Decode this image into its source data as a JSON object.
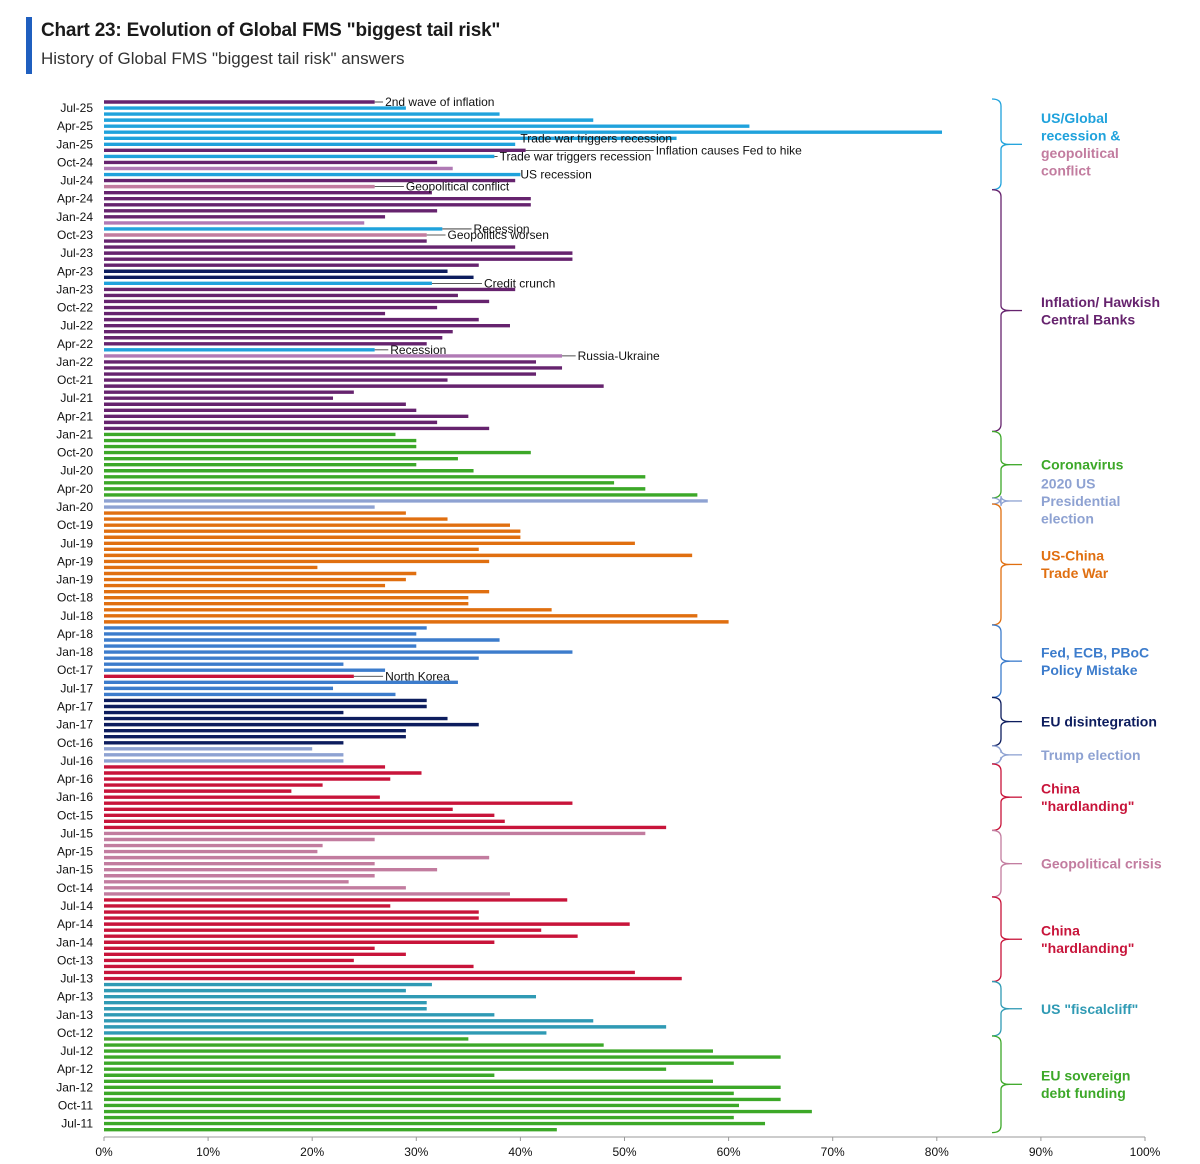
{
  "header": {
    "title": "Chart 23: Evolution of Global FMS \"biggest tail risk\"",
    "subtitle": "History of Global FMS \"biggest tail risk\" answers",
    "accent_color": "#1f5fbf"
  },
  "colors": {
    "A": "#1fa2dc",
    "I": "#66236e",
    "C": "#3ca828",
    "E": "#8ea2d2",
    "T": "#e06f10",
    "F": "#3c7ccc",
    "N": "#0d1d5e",
    "U": "#8ea2d2",
    "H": "#c8143a",
    "G": "#c27c9f",
    "S": "#2f9ab4",
    "K": "#b07ab5"
  },
  "chart_data": {
    "type": "bar",
    "orientation": "horizontal",
    "title": "Chart 23: Evolution of Global FMS \"biggest tail risk\"",
    "subtitle": "History of Global FMS \"biggest tail risk\" answers",
    "xlim": [
      0,
      100
    ],
    "x_unit": "%",
    "x_ticks": [
      "0%",
      "10%",
      "20%",
      "30%",
      "40%",
      "50%",
      "60%",
      "70%",
      "80%",
      "90%",
      "100%"
    ],
    "y_tick_labels": [
      "Jul-25",
      "Apr-25",
      "Jan-25",
      "Oct-24",
      "Jul-24",
      "Apr-24",
      "Jan-24",
      "Oct-23",
      "Jul-23",
      "Apr-23",
      "Jan-23",
      "Oct-22",
      "Jul-22",
      "Apr-22",
      "Jan-22",
      "Oct-21",
      "Jul-21",
      "Apr-21",
      "Jan-21",
      "Oct-20",
      "Jul-20",
      "Apr-20",
      "Jan-20",
      "Oct-19",
      "Jul-19",
      "Apr-19",
      "Jan-19",
      "Oct-18",
      "Jul-18",
      "Apr-18",
      "Jan-18",
      "Oct-17",
      "Jul-17",
      "Apr-17",
      "Jan-17",
      "Oct-16",
      "Jul-16",
      "Apr-16",
      "Jan-16",
      "Oct-15",
      "Jul-15",
      "Apr-15",
      "Jan-15",
      "Oct-14",
      "Jul-14",
      "Apr-14",
      "Jan-14",
      "Oct-13",
      "Jul-13",
      "Apr-13",
      "Jan-13",
      "Oct-12",
      "Jul-12",
      "Apr-12",
      "Jan-12",
      "Oct-11",
      "Jul-11"
    ],
    "bars": [
      {
        "month": "Aug-25",
        "value": 26,
        "cat": "I"
      },
      {
        "month": "Jul-25",
        "value": 29,
        "cat": "A"
      },
      {
        "month": "Jun-25",
        "value": 38,
        "cat": "A"
      },
      {
        "month": "May-25",
        "value": 47,
        "cat": "A"
      },
      {
        "month": "Apr-25",
        "value": 62,
        "cat": "A"
      },
      {
        "month": "Mar-25",
        "value": 80.5,
        "cat": "A"
      },
      {
        "month": "Feb-25",
        "value": 55,
        "cat": "A"
      },
      {
        "month": "Jan-25",
        "value": 39.5,
        "cat": "A"
      },
      {
        "month": "Dec-24",
        "value": 40.5,
        "cat": "I"
      },
      {
        "month": "Nov-24",
        "value": 37.5,
        "cat": "A"
      },
      {
        "month": "Oct-24",
        "value": 32,
        "cat": "I"
      },
      {
        "month": "Sep-24",
        "value": 33.5,
        "cat": "K"
      },
      {
        "month": "Aug-24",
        "value": 40,
        "cat": "A"
      },
      {
        "month": "Jul-24",
        "value": 39.5,
        "cat": "I"
      },
      {
        "month": "Jun-24",
        "value": 26,
        "cat": "G"
      },
      {
        "month": "May-24",
        "value": 31.5,
        "cat": "I"
      },
      {
        "month": "Apr-24",
        "value": 41,
        "cat": "I"
      },
      {
        "month": "Mar-24",
        "value": 41,
        "cat": "I"
      },
      {
        "month": "Feb-24",
        "value": 32,
        "cat": "I"
      },
      {
        "month": "Jan-24",
        "value": 27,
        "cat": "I"
      },
      {
        "month": "Dec-23",
        "value": 25,
        "cat": "K"
      },
      {
        "month": "Nov-23",
        "value": 32.5,
        "cat": "A"
      },
      {
        "month": "Oct-23",
        "value": 31,
        "cat": "G"
      },
      {
        "month": "Sep-23",
        "value": 31,
        "cat": "I"
      },
      {
        "month": "Aug-23",
        "value": 39.5,
        "cat": "I"
      },
      {
        "month": "Jul-23",
        "value": 45,
        "cat": "I"
      },
      {
        "month": "Jun-23",
        "value": 45,
        "cat": "I"
      },
      {
        "month": "May-23",
        "value": 36,
        "cat": "I"
      },
      {
        "month": "Apr-23",
        "value": 33,
        "cat": "N"
      },
      {
        "month": "Mar-23",
        "value": 35.5,
        "cat": "N"
      },
      {
        "month": "Feb-23",
        "value": 31.5,
        "cat": "A"
      },
      {
        "month": "Jan-23",
        "value": 39.5,
        "cat": "I"
      },
      {
        "month": "Dec-22",
        "value": 34,
        "cat": "I"
      },
      {
        "month": "Nov-22",
        "value": 37,
        "cat": "I"
      },
      {
        "month": "Oct-22",
        "value": 32,
        "cat": "I"
      },
      {
        "month": "Sep-22",
        "value": 27,
        "cat": "I"
      },
      {
        "month": "Aug-22",
        "value": 36,
        "cat": "I"
      },
      {
        "month": "Jul-22",
        "value": 39,
        "cat": "I"
      },
      {
        "month": "Jun-22",
        "value": 33.5,
        "cat": "I"
      },
      {
        "month": "May-22",
        "value": 32.5,
        "cat": "I"
      },
      {
        "month": "Apr-22",
        "value": 31,
        "cat": "I"
      },
      {
        "month": "Mar-22",
        "value": 26,
        "cat": "A"
      },
      {
        "month": "Feb-22",
        "value": 44,
        "cat": "K"
      },
      {
        "month": "Jan-22",
        "value": 41.5,
        "cat": "I"
      },
      {
        "month": "Dec-21",
        "value": 44,
        "cat": "I"
      },
      {
        "month": "Nov-21",
        "value": 41.5,
        "cat": "I"
      },
      {
        "month": "Oct-21",
        "value": 33,
        "cat": "I"
      },
      {
        "month": "Sep-21",
        "value": 48,
        "cat": "I"
      },
      {
        "month": "Aug-21",
        "value": 24,
        "cat": "I"
      },
      {
        "month": "Jul-21",
        "value": 22,
        "cat": "I"
      },
      {
        "month": "Jun-21",
        "value": 29,
        "cat": "I"
      },
      {
        "month": "May-21",
        "value": 30,
        "cat": "I"
      },
      {
        "month": "Apr-21",
        "value": 35,
        "cat": "I"
      },
      {
        "month": "Mar-21",
        "value": 32,
        "cat": "I"
      },
      {
        "month": "Feb-21",
        "value": 37,
        "cat": "I"
      },
      {
        "month": "Jan-21",
        "value": 28,
        "cat": "C"
      },
      {
        "month": "Dec-20",
        "value": 30,
        "cat": "C"
      },
      {
        "month": "Nov-20",
        "value": 30,
        "cat": "C"
      },
      {
        "month": "Oct-20",
        "value": 41,
        "cat": "C"
      },
      {
        "month": "Sep-20",
        "value": 34,
        "cat": "C"
      },
      {
        "month": "Aug-20",
        "value": 30,
        "cat": "C"
      },
      {
        "month": "Jul-20",
        "value": 35.5,
        "cat": "C"
      },
      {
        "month": "Jun-20",
        "value": 52,
        "cat": "C"
      },
      {
        "month": "May-20",
        "value": 49,
        "cat": "C"
      },
      {
        "month": "Apr-20",
        "value": 52,
        "cat": "C"
      },
      {
        "month": "Mar-20",
        "value": 57,
        "cat": "C"
      },
      {
        "month": "Feb-20",
        "value": 58,
        "cat": "E"
      },
      {
        "month": "Jan-20",
        "value": 26,
        "cat": "E"
      },
      {
        "month": "Dec-19",
        "value": 29,
        "cat": "T"
      },
      {
        "month": "Nov-19",
        "value": 33,
        "cat": "T"
      },
      {
        "month": "Oct-19",
        "value": 39,
        "cat": "T"
      },
      {
        "month": "Sep-19",
        "value": 40,
        "cat": "T"
      },
      {
        "month": "Aug-19",
        "value": 40,
        "cat": "T"
      },
      {
        "month": "Jul-19",
        "value": 51,
        "cat": "T"
      },
      {
        "month": "Jun-19",
        "value": 36,
        "cat": "T"
      },
      {
        "month": "May-19",
        "value": 56.5,
        "cat": "T"
      },
      {
        "month": "Apr-19",
        "value": 37,
        "cat": "T"
      },
      {
        "month": "Mar-19",
        "value": 20.5,
        "cat": "T"
      },
      {
        "month": "Feb-19",
        "value": 30,
        "cat": "T"
      },
      {
        "month": "Jan-19",
        "value": 29,
        "cat": "T"
      },
      {
        "month": "Dec-18",
        "value": 27,
        "cat": "T"
      },
      {
        "month": "Nov-18",
        "value": 37,
        "cat": "T"
      },
      {
        "month": "Oct-18",
        "value": 35,
        "cat": "T"
      },
      {
        "month": "Sep-18",
        "value": 35,
        "cat": "T"
      },
      {
        "month": "Aug-18",
        "value": 43,
        "cat": "T"
      },
      {
        "month": "Jul-18",
        "value": 57,
        "cat": "T"
      },
      {
        "month": "Jun-18",
        "value": 60,
        "cat": "T"
      },
      {
        "month": "May-18",
        "value": 31,
        "cat": "F"
      },
      {
        "month": "Apr-18",
        "value": 30,
        "cat": "F"
      },
      {
        "month": "Mar-18",
        "value": 38,
        "cat": "F"
      },
      {
        "month": "Feb-18",
        "value": 30,
        "cat": "F"
      },
      {
        "month": "Jan-18",
        "value": 45,
        "cat": "F"
      },
      {
        "month": "Dec-17",
        "value": 36,
        "cat": "F"
      },
      {
        "month": "Nov-17",
        "value": 23,
        "cat": "F"
      },
      {
        "month": "Oct-17",
        "value": 27,
        "cat": "F"
      },
      {
        "month": "Sep-17",
        "value": 24,
        "cat": "H"
      },
      {
        "month": "Aug-17",
        "value": 34,
        "cat": "F"
      },
      {
        "month": "Jul-17",
        "value": 22,
        "cat": "F"
      },
      {
        "month": "Jun-17",
        "value": 28,
        "cat": "F"
      },
      {
        "month": "May-17",
        "value": 31,
        "cat": "N"
      },
      {
        "month": "Apr-17",
        "value": 31,
        "cat": "N"
      },
      {
        "month": "Mar-17",
        "value": 23,
        "cat": "N"
      },
      {
        "month": "Feb-17",
        "value": 33,
        "cat": "N"
      },
      {
        "month": "Jan-17",
        "value": 36,
        "cat": "N"
      },
      {
        "month": "Dec-16",
        "value": 29,
        "cat": "N"
      },
      {
        "month": "Nov-16",
        "value": 29,
        "cat": "N"
      },
      {
        "month": "Oct-16",
        "value": 23,
        "cat": "N"
      },
      {
        "month": "Sep-16",
        "value": 20,
        "cat": "U"
      },
      {
        "month": "Aug-16",
        "value": 23,
        "cat": "U"
      },
      {
        "month": "Jul-16",
        "value": 23,
        "cat": "U"
      },
      {
        "month": "Jun-16",
        "value": 27,
        "cat": "H"
      },
      {
        "month": "May-16",
        "value": 30.5,
        "cat": "H"
      },
      {
        "month": "Apr-16",
        "value": 27.5,
        "cat": "H"
      },
      {
        "month": "Mar-16",
        "value": 21,
        "cat": "H"
      },
      {
        "month": "Feb-16",
        "value": 18,
        "cat": "H"
      },
      {
        "month": "Jan-16",
        "value": 26.5,
        "cat": "H"
      },
      {
        "month": "Dec-15",
        "value": 45,
        "cat": "H"
      },
      {
        "month": "Nov-15",
        "value": 33.5,
        "cat": "H"
      },
      {
        "month": "Oct-15",
        "value": 37.5,
        "cat": "H"
      },
      {
        "month": "Sep-15",
        "value": 38.5,
        "cat": "H"
      },
      {
        "month": "Aug-15",
        "value": 54,
        "cat": "H"
      },
      {
        "month": "Jul-15",
        "value": 52,
        "cat": "G"
      },
      {
        "month": "Jun-15",
        "value": 26,
        "cat": "G"
      },
      {
        "month": "May-15",
        "value": 21,
        "cat": "G"
      },
      {
        "month": "Apr-15",
        "value": 20.5,
        "cat": "G"
      },
      {
        "month": "Mar-15",
        "value": 37,
        "cat": "G"
      },
      {
        "month": "Feb-15",
        "value": 26,
        "cat": "G"
      },
      {
        "month": "Jan-15",
        "value": 32,
        "cat": "G"
      },
      {
        "month": "Dec-14",
        "value": 26,
        "cat": "G"
      },
      {
        "month": "Nov-14",
        "value": 23.5,
        "cat": "G"
      },
      {
        "month": "Oct-14",
        "value": 29,
        "cat": "G"
      },
      {
        "month": "Sep-14",
        "value": 39,
        "cat": "G"
      },
      {
        "month": "Aug-14",
        "value": 44.5,
        "cat": "H"
      },
      {
        "month": "Jul-14",
        "value": 27.5,
        "cat": "H"
      },
      {
        "month": "Jun-14",
        "value": 36,
        "cat": "H"
      },
      {
        "month": "May-14",
        "value": 36,
        "cat": "H"
      },
      {
        "month": "Apr-14",
        "value": 50.5,
        "cat": "H"
      },
      {
        "month": "Mar-14",
        "value": 42,
        "cat": "H"
      },
      {
        "month": "Feb-14",
        "value": 45.5,
        "cat": "H"
      },
      {
        "month": "Jan-14",
        "value": 37.5,
        "cat": "H"
      },
      {
        "month": "Dec-13",
        "value": 26,
        "cat": "H"
      },
      {
        "month": "Nov-13",
        "value": 29,
        "cat": "H"
      },
      {
        "month": "Oct-13",
        "value": 24,
        "cat": "H"
      },
      {
        "month": "Sep-13",
        "value": 35.5,
        "cat": "H"
      },
      {
        "month": "Aug-13",
        "value": 51,
        "cat": "H"
      },
      {
        "month": "Jul-13",
        "value": 55.5,
        "cat": "H"
      },
      {
        "month": "Jun-13",
        "value": 31.5,
        "cat": "S"
      },
      {
        "month": "May-13",
        "value": 29,
        "cat": "S"
      },
      {
        "month": "Apr-13",
        "value": 41.5,
        "cat": "S"
      },
      {
        "month": "Mar-13",
        "value": 31,
        "cat": "S"
      },
      {
        "month": "Feb-13",
        "value": 31,
        "cat": "S"
      },
      {
        "month": "Jan-13",
        "value": 37.5,
        "cat": "S"
      },
      {
        "month": "Dec-12",
        "value": 47,
        "cat": "S"
      },
      {
        "month": "Nov-12",
        "value": 54,
        "cat": "S"
      },
      {
        "month": "Oct-12",
        "value": 42.5,
        "cat": "S"
      },
      {
        "month": "Sep-12",
        "value": 35,
        "cat": "C"
      },
      {
        "month": "Aug-12",
        "value": 48,
        "cat": "C"
      },
      {
        "month": "Jul-12",
        "value": 58.5,
        "cat": "C"
      },
      {
        "month": "Jun-12",
        "value": 65,
        "cat": "C"
      },
      {
        "month": "May-12",
        "value": 60.5,
        "cat": "C"
      },
      {
        "month": "Apr-12",
        "value": 54,
        "cat": "C"
      },
      {
        "month": "Mar-12",
        "value": 37.5,
        "cat": "C"
      },
      {
        "month": "Feb-12",
        "value": 58.5,
        "cat": "C"
      },
      {
        "month": "Jan-12",
        "value": 65,
        "cat": "C"
      },
      {
        "month": "Dec-11",
        "value": 60.5,
        "cat": "C"
      },
      {
        "month": "Nov-11",
        "value": 65,
        "cat": "C"
      },
      {
        "month": "Oct-11",
        "value": 61,
        "cat": "C"
      },
      {
        "month": "Sep-11",
        "value": 68,
        "cat": "C"
      },
      {
        "month": "Aug-11",
        "value": 60.5,
        "cat": "C"
      },
      {
        "month": "Jul-11",
        "value": 63.5,
        "cat": "C"
      },
      {
        "month": "Jun-11",
        "value": 43.5,
        "cat": "C"
      }
    ],
    "annotations": [
      {
        "text": "2nd wave of inflation",
        "bar": "Aug-25",
        "label_at": 27
      },
      {
        "text": "Trade war triggers recession",
        "bar": "Feb-25",
        "label_at": 40
      },
      {
        "text": "Inflation causes Fed to hike",
        "bar": "Dec-24",
        "label_at": 53
      },
      {
        "text": "Trade war triggers recession",
        "bar": "Nov-24",
        "label_at": 38
      },
      {
        "text": "US recession",
        "bar": "Aug-24",
        "label_at": 40
      },
      {
        "text": "Geopolitical conflict",
        "bar": "Jun-24",
        "label_at": 29
      },
      {
        "text": "Recession",
        "bar": "Nov-23",
        "label_at": 35.5
      },
      {
        "text": "Geopolitics worsen",
        "bar": "Oct-23",
        "label_at": 33
      },
      {
        "text": "Credit crunch",
        "bar": "Feb-23",
        "label_at": 36.5
      },
      {
        "text": "Recession",
        "bar": "Mar-22",
        "label_at": 27.5
      },
      {
        "text": "Russia-Ukraine",
        "bar": "Feb-22",
        "label_at": 45.5
      },
      {
        "text": "North Korea",
        "bar": "Sep-17",
        "label_at": 27
      }
    ],
    "groups": [
      {
        "label": [
          "US/Global",
          "recession &"
        ],
        "label2": [
          "geopolitical",
          "conflict"
        ],
        "cat": "A",
        "cat2": "G",
        "from": "Aug-25",
        "to": "Jun-24"
      },
      {
        "label": [
          "Inflation/ Hawkish",
          "Central Banks"
        ],
        "cat": "I",
        "from": "May-24",
        "to": "Feb-21"
      },
      {
        "label": [
          "Coronavirus"
        ],
        "cat": "C",
        "from": "Jan-21",
        "to": "Mar-20"
      },
      {
        "label": [
          "2020 US",
          "Presidential",
          "election"
        ],
        "cat": "E",
        "from": "Feb-20",
        "to": "Feb-20"
      },
      {
        "label": [
          "US-China",
          "Trade War"
        ],
        "cat": "T",
        "from": "Jan-20",
        "to": "Jun-18"
      },
      {
        "label": [
          "Fed, ECB, PBoC",
          "Policy Mistake"
        ],
        "cat": "F",
        "from": "May-18",
        "to": "Jun-17"
      },
      {
        "label": [
          "EU disintegration"
        ],
        "cat": "N",
        "from": "May-17",
        "to": "Oct-16"
      },
      {
        "label": [
          "Trump election"
        ],
        "cat": "U",
        "from": "Sep-16",
        "to": "Jul-16"
      },
      {
        "label": [
          "China",
          "\"hardlanding\""
        ],
        "cat": "H",
        "from": "Jun-16",
        "to": "Aug-15"
      },
      {
        "label": [
          "Geopolitical crisis"
        ],
        "cat": "G",
        "from": "Jul-15",
        "to": "Sep-14"
      },
      {
        "label": [
          "China",
          "\"hardlanding\""
        ],
        "cat": "H",
        "from": "Aug-14",
        "to": "Jul-13"
      },
      {
        "label": [
          "US \"fiscalcliff\""
        ],
        "cat": "S",
        "from": "Jun-13",
        "to": "Oct-12"
      },
      {
        "label": [
          "EU sovereign",
          "debt funding"
        ],
        "cat": "C",
        "from": "Sep-12",
        "to": "Jun-11"
      }
    ]
  }
}
